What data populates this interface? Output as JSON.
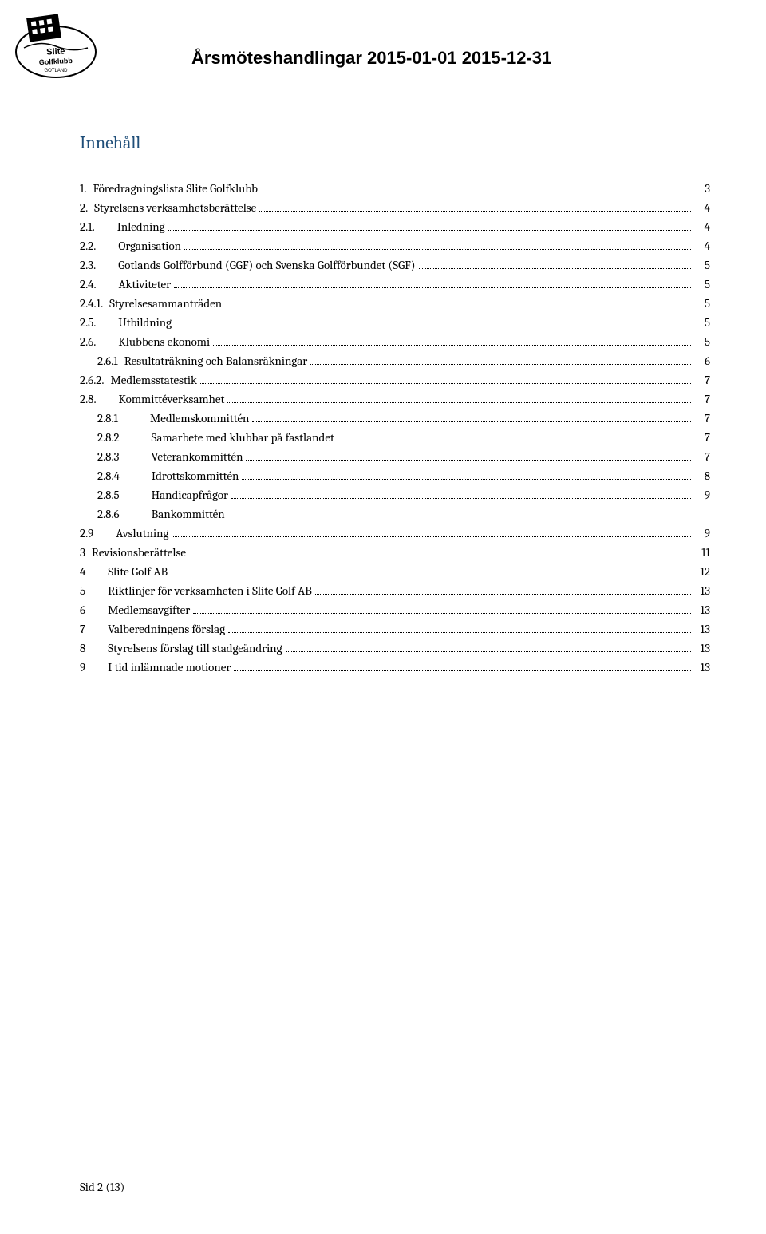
{
  "header": {
    "title": "Årsmöteshandlingar 2015-01-01 2015-12-31",
    "logo_name": "Slite Golfklubb Gotland"
  },
  "toc": {
    "title": "Innehåll",
    "entries": [
      {
        "level": 0,
        "number": "1.",
        "text": "Föredragningslista Slite Golfklubb",
        "page": "3",
        "num_class": ""
      },
      {
        "level": 0,
        "number": "2.",
        "text": "Styrelsens verksamhetsberättelse",
        "page": "4",
        "num_class": ""
      },
      {
        "level": 1,
        "number": "2.1.",
        "text": "Inledning",
        "page": "4",
        "num_class": "wide"
      },
      {
        "level": 1,
        "number": "2.2.",
        "text": "Organisation",
        "page": "4",
        "num_class": "wide"
      },
      {
        "level": 1,
        "number": "2.3.",
        "text": "Gotlands Golfförbund (GGF) och Svenska Golfförbundet (SGF)",
        "page": "5",
        "num_class": "wide"
      },
      {
        "level": 1,
        "number": "2.4.",
        "text": "Aktiviteter",
        "page": "5",
        "num_class": "wide"
      },
      {
        "level": 1,
        "number": "2.4.1.",
        "text": "Styrelsesammanträden",
        "page": "5",
        "num_class": ""
      },
      {
        "level": 1,
        "number": "2.5.",
        "text": "Utbildning",
        "page": "5",
        "num_class": "wide"
      },
      {
        "level": 1,
        "number": "2.6.",
        "text": "Klubbens ekonomi",
        "page": "5",
        "num_class": "wide"
      },
      {
        "level": 2,
        "number": "2.6.1",
        "text": "Resultaträkning och Balansräkningar",
        "page": "6",
        "num_class": ""
      },
      {
        "level": 1,
        "number": "2.6.2.",
        "text": "Medlemsstatestik",
        "page": "7",
        "num_class": ""
      },
      {
        "level": 1,
        "number": "2.8.",
        "text": "Kommittéverksamhet",
        "page": "7",
        "num_class": "wide"
      },
      {
        "level": 2,
        "number": "2.8.1",
        "text": "Medlemskommittén",
        "page": "7",
        "num_class": "wider"
      },
      {
        "level": 2,
        "number": "2.8.2",
        "text": "Samarbete med klubbar på fastlandet",
        "page": "7",
        "num_class": "wider"
      },
      {
        "level": 2,
        "number": "2.8.3",
        "text": "Veterankommittén",
        "page": "7",
        "num_class": "wider"
      },
      {
        "level": 2,
        "number": "2.8.4",
        "text": "Idrottskommittén",
        "page": "8",
        "num_class": "wider"
      },
      {
        "level": 2,
        "number": "2.8.5",
        "text": "Handicapfrågor",
        "page": "9",
        "num_class": "wider"
      },
      {
        "level": 2,
        "number": "2.8.6",
        "text": "Bankommittén",
        "page": "",
        "num_class": "wider",
        "no_leader": true
      },
      {
        "level": 1,
        "number": "2.9",
        "text": "Avslutning",
        "page": "9",
        "num_class": "wide"
      },
      {
        "level": 0,
        "number": "3",
        "text": "Revisionsberättelse",
        "page": "11",
        "num_class": ""
      },
      {
        "level": 1,
        "number": "4",
        "text": "Slite Golf AB",
        "page": "12",
        "num_class": "wide"
      },
      {
        "level": 0,
        "number": "5",
        "text": "Riktlinjer för verksamheten i Slite Golf AB",
        "page": "13",
        "num_class": "wide"
      },
      {
        "level": 0,
        "number": "6",
        "text": "Medlemsavgifter",
        "page": "13",
        "num_class": "wide"
      },
      {
        "level": 0,
        "number": "7",
        "text": "Valberedningens förslag",
        "page": "13",
        "num_class": "wide"
      },
      {
        "level": 0,
        "number": "8",
        "text": "Styrelsens förslag till stadgeändring",
        "page": "13",
        "num_class": "wide"
      },
      {
        "level": 0,
        "number": "9",
        "text": "I tid inlämnade motioner",
        "page": "13",
        "num_class": "wide"
      }
    ]
  },
  "footer": {
    "text": "Sid 2 (13)"
  },
  "colors": {
    "heading_blue": "#1f4e79",
    "text_black": "#000000",
    "background": "#ffffff"
  }
}
